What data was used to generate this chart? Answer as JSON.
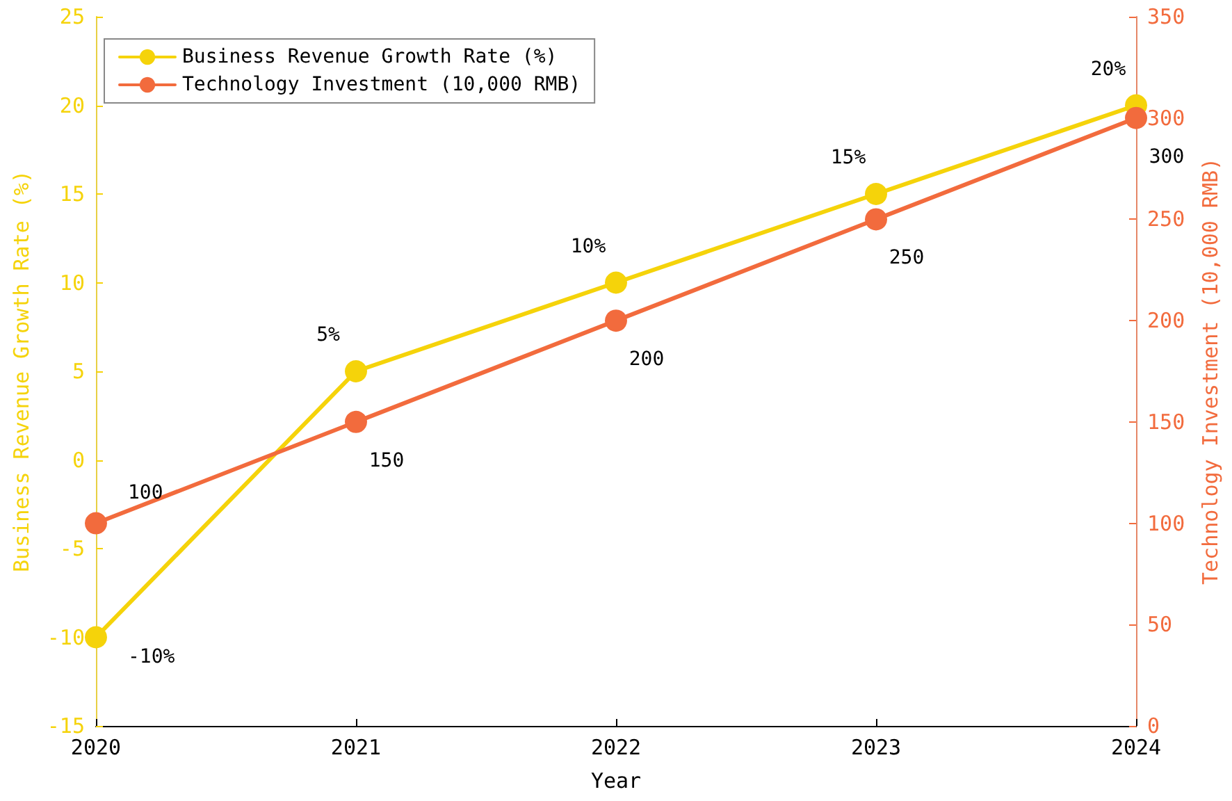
{
  "chart_data": {
    "type": "line",
    "xlabel": "Year",
    "ylabel": "Business Revenue Growth Rate (%)",
    "y2label": "Technology Investment (10,000 RMB)",
    "x": [
      2020,
      2021,
      2022,
      2023,
      2024
    ],
    "xlim": [
      2020,
      2024
    ],
    "xticks": [
      2020,
      2021,
      2022,
      2023,
      2024
    ],
    "ylim": [
      -15,
      25
    ],
    "yticks": [
      -15,
      -10,
      -5,
      0,
      5,
      10,
      15,
      20,
      25
    ],
    "y2lim": [
      0,
      350
    ],
    "y2ticks": [
      0,
      50,
      100,
      150,
      200,
      250,
      300,
      350
    ],
    "series": [
      {
        "name": "Business Revenue Growth Rate (%)",
        "color": "#f5d30a",
        "values": [
          -10,
          5,
          10,
          15,
          20
        ],
        "value_labels": [
          "-10%",
          "5%",
          "10%",
          "15%",
          "20%"
        ]
      },
      {
        "name": "Technology Investment (10,000 RMB)",
        "color": "#f26b3d",
        "axis": "y2",
        "values": [
          100,
          150,
          200,
          250,
          300
        ],
        "value_labels": [
          "100",
          "150",
          "200",
          "250",
          "300"
        ]
      }
    ],
    "legend": "top left",
    "grid": false,
    "marker": "circle",
    "line_style": "solid"
  }
}
